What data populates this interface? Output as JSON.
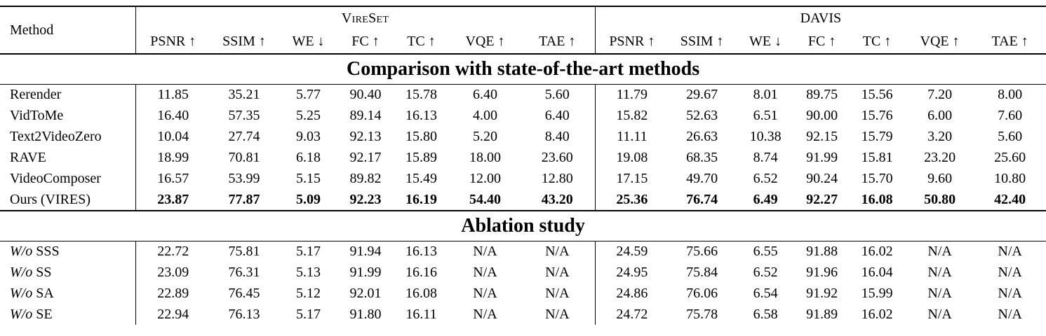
{
  "table": {
    "method_header": "Method",
    "groups": [
      {
        "label": "VireSet",
        "small_caps": true
      },
      {
        "label": "DAVIS",
        "small_caps": false
      }
    ],
    "metrics": [
      {
        "label": "PSNR",
        "arrow": "↑"
      },
      {
        "label": "SSIM",
        "arrow": "↑"
      },
      {
        "label": "WE",
        "arrow": "↓"
      },
      {
        "label": "FC",
        "arrow": "↑"
      },
      {
        "label": "TC",
        "arrow": "↑"
      },
      {
        "label": "VQE",
        "arrow": "↑"
      },
      {
        "label": "TAE",
        "arrow": "↑"
      }
    ],
    "sections": [
      {
        "title": "Comparison with state-of-the-art methods",
        "rows": [
          {
            "method": {
              "prefix_italic": "",
              "name": "Rerender"
            },
            "bold": false,
            "vireset": [
              "11.85",
              "35.21",
              "5.77",
              "90.40",
              "15.78",
              "6.40",
              "5.60"
            ],
            "davis": [
              "11.79",
              "29.67",
              "8.01",
              "89.75",
              "15.56",
              "7.20",
              "8.00"
            ]
          },
          {
            "method": {
              "prefix_italic": "",
              "name": "VidToMe"
            },
            "bold": false,
            "vireset": [
              "16.40",
              "57.35",
              "5.25",
              "89.14",
              "16.13",
              "4.00",
              "6.40"
            ],
            "davis": [
              "15.82",
              "52.63",
              "6.51",
              "90.00",
              "15.76",
              "6.00",
              "7.60"
            ]
          },
          {
            "method": {
              "prefix_italic": "",
              "name": "Text2VideoZero"
            },
            "bold": false,
            "vireset": [
              "10.04",
              "27.74",
              "9.03",
              "92.13",
              "15.80",
              "5.20",
              "8.40"
            ],
            "davis": [
              "11.11",
              "26.63",
              "10.38",
              "92.15",
              "15.79",
              "3.20",
              "5.60"
            ]
          },
          {
            "method": {
              "prefix_italic": "",
              "name": "RAVE"
            },
            "bold": false,
            "vireset": [
              "18.99",
              "70.81",
              "6.18",
              "92.17",
              "15.89",
              "18.00",
              "23.60"
            ],
            "davis": [
              "19.08",
              "68.35",
              "8.74",
              "91.99",
              "15.81",
              "23.20",
              "25.60"
            ]
          },
          {
            "method": {
              "prefix_italic": "",
              "name": "VideoComposer"
            },
            "bold": false,
            "vireset": [
              "16.57",
              "53.99",
              "5.15",
              "89.82",
              "15.49",
              "12.00",
              "12.80"
            ],
            "davis": [
              "17.15",
              "49.70",
              "6.52",
              "90.24",
              "15.70",
              "9.60",
              "10.80"
            ]
          },
          {
            "method": {
              "prefix_italic": "",
              "name": "Ours (VIRES)"
            },
            "bold": true,
            "vireset": [
              "23.87",
              "77.87",
              "5.09",
              "92.23",
              "16.19",
              "54.40",
              "43.20"
            ],
            "davis": [
              "25.36",
              "76.74",
              "6.49",
              "92.27",
              "16.08",
              "50.80",
              "42.40"
            ]
          }
        ]
      },
      {
        "title": "Ablation study",
        "rows": [
          {
            "method": {
              "prefix_italic": "W/o ",
              "name": "SSS"
            },
            "bold": false,
            "vireset": [
              "22.72",
              "75.81",
              "5.17",
              "91.94",
              "16.13",
              "N/A",
              "N/A"
            ],
            "davis": [
              "24.59",
              "75.66",
              "6.55",
              "91.88",
              "16.02",
              "N/A",
              "N/A"
            ]
          },
          {
            "method": {
              "prefix_italic": "W/o ",
              "name": "SS"
            },
            "bold": false,
            "vireset": [
              "23.09",
              "76.31",
              "5.13",
              "91.99",
              "16.16",
              "N/A",
              "N/A"
            ],
            "davis": [
              "24.95",
              "75.84",
              "6.52",
              "91.96",
              "16.04",
              "N/A",
              "N/A"
            ]
          },
          {
            "method": {
              "prefix_italic": "W/o ",
              "name": "SA"
            },
            "bold": false,
            "vireset": [
              "22.89",
              "76.45",
              "5.12",
              "92.01",
              "16.08",
              "N/A",
              "N/A"
            ],
            "davis": [
              "24.86",
              "76.06",
              "6.54",
              "91.92",
              "15.99",
              "N/A",
              "N/A"
            ]
          },
          {
            "method": {
              "prefix_italic": "W/o ",
              "name": "SE"
            },
            "bold": false,
            "vireset": [
              "22.94",
              "76.13",
              "5.17",
              "91.80",
              "16.11",
              "N/A",
              "N/A"
            ],
            "davis": [
              "24.72",
              "75.78",
              "6.58",
              "91.89",
              "16.02",
              "N/A",
              "N/A"
            ]
          }
        ]
      }
    ]
  }
}
